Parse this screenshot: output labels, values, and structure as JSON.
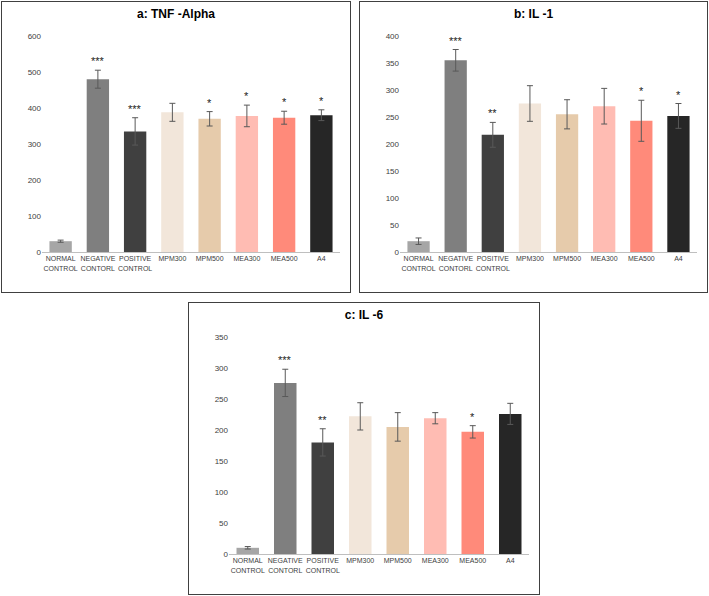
{
  "chart_data": [
    {
      "type": "bar",
      "title": "a: TNF -Alpha",
      "categories": [
        "NORMAL CONTROL",
        "NEGATIVE CONTORL",
        "POSITIVE CONTROL",
        "MPM300",
        "MPM500",
        "MEA300",
        "MEA500",
        "A4"
      ],
      "values": [
        30,
        480,
        335,
        388,
        370,
        378,
        373,
        380
      ],
      "errors": [
        3,
        25,
        38,
        25,
        20,
        30,
        18,
        15
      ],
      "significance": [
        null,
        "***",
        "***",
        null,
        "*",
        "*",
        "*",
        "*"
      ],
      "colors": [
        "#a6a6a6",
        "#7f7f7f",
        "#404040",
        "#f2e6da",
        "#e6cbab",
        "#ffbcb3",
        "#ff8a7a",
        "#262626"
      ],
      "ylim": [
        0,
        600
      ],
      "yticks": [
        0,
        100,
        200,
        300,
        400,
        500,
        600
      ],
      "grid": false
    },
    {
      "type": "bar",
      "title": "b: IL -1",
      "categories": [
        "NORMAL CONTROL",
        "NEGATIVE CONTORL",
        "POSITIVE CONTROL",
        "MPM300",
        "MPM500",
        "MEA300",
        "MEA500",
        "A4"
      ],
      "values": [
        20,
        355,
        217,
        275,
        255,
        270,
        243,
        252
      ],
      "errors": [
        6,
        20,
        23,
        33,
        27,
        33,
        38,
        23
      ],
      "significance": [
        null,
        "***",
        "**",
        null,
        null,
        null,
        "*",
        "*"
      ],
      "colors": [
        "#a6a6a6",
        "#7f7f7f",
        "#404040",
        "#f2e6da",
        "#e6cbab",
        "#ffbcb3",
        "#ff8a7a",
        "#262626"
      ],
      "ylim": [
        0,
        400
      ],
      "yticks": [
        0,
        50,
        100,
        150,
        200,
        250,
        300,
        350,
        400
      ],
      "grid": false
    },
    {
      "type": "bar",
      "title": "c: IL -6",
      "categories": [
        "NORMAL CONTROL",
        "NEGATIVE CONTORL",
        "POSITIVE CONTROL",
        "MPM300",
        "MPM500",
        "MEA300",
        "MEA500",
        "A4"
      ],
      "values": [
        10,
        276,
        180,
        222,
        205,
        219,
        197,
        226
      ],
      "errors": [
        2,
        22,
        22,
        22,
        23,
        9,
        10,
        17
      ],
      "significance": [
        null,
        "***",
        "**",
        null,
        null,
        null,
        "*",
        null
      ],
      "colors": [
        "#a6a6a6",
        "#7f7f7f",
        "#404040",
        "#f2e6da",
        "#e6cbab",
        "#ffbcb3",
        "#ff8a7a",
        "#262626"
      ],
      "ylim": [
        0,
        350
      ],
      "yticks": [
        0,
        50,
        100,
        150,
        200,
        250,
        300,
        350
      ],
      "grid": false
    }
  ]
}
